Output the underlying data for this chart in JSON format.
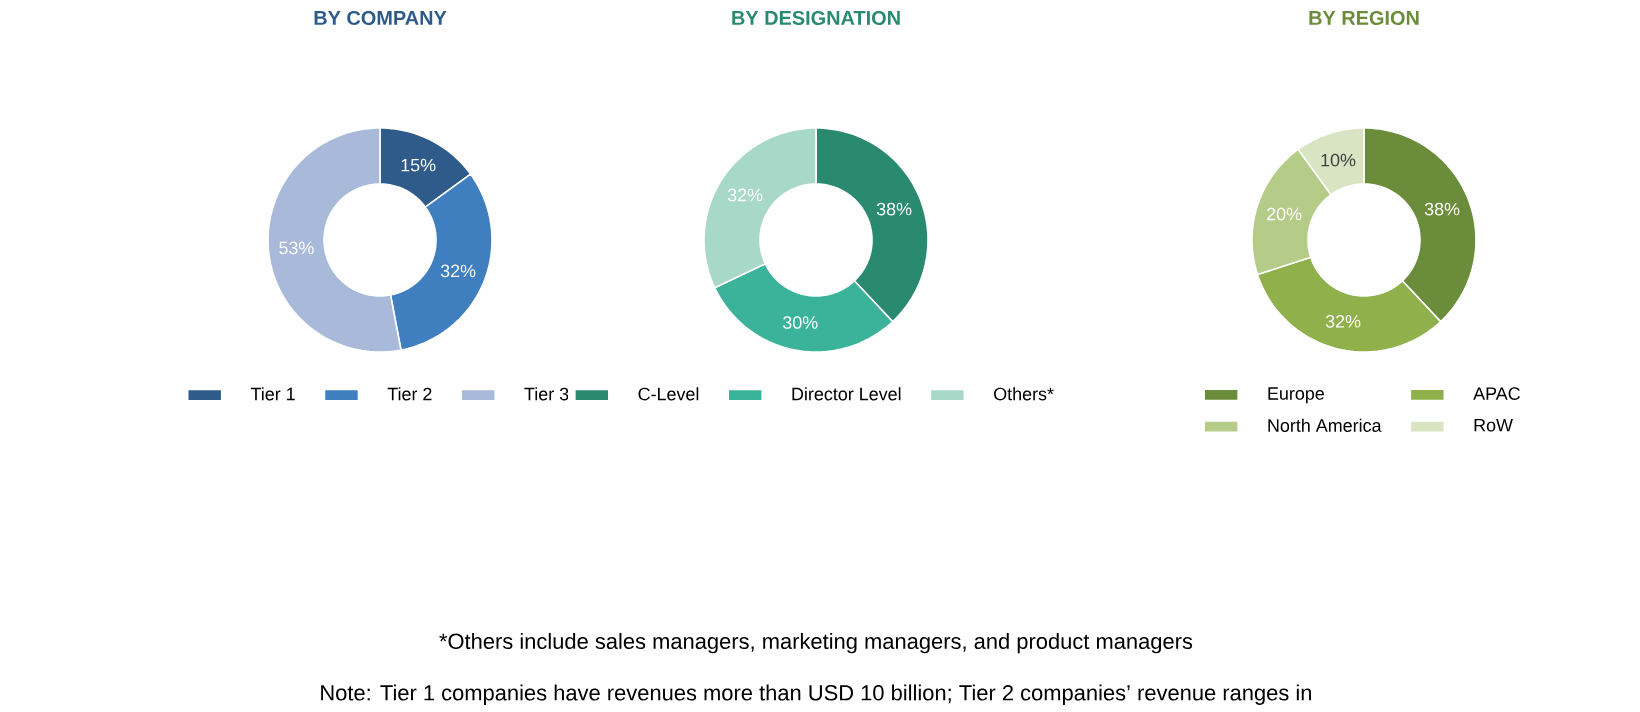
{
  "chart_data": [
    {
      "type": "donut",
      "title": "BY COMPANY",
      "categories": [
        "Tier 1",
        "Tier 2",
        "Tier 3"
      ],
      "values": [
        15,
        32,
        53
      ],
      "value_labels": [
        "15%",
        "32%",
        "53%"
      ],
      "colors": [
        "#2e5b8a",
        "#3f7fc0",
        "#a8b9d9"
      ],
      "legend": "bottom"
    },
    {
      "type": "donut",
      "title": "BY DESIGNATION",
      "categories": [
        "C-Level",
        "Director Level",
        "Others*"
      ],
      "values": [
        38,
        30,
        32
      ],
      "value_labels": [
        "38%",
        "30%",
        "32%"
      ],
      "colors": [
        "#2a8a70",
        "#3bb39a",
        "#a8d8c8"
      ],
      "legend": "bottom",
      "annotations": [
        "*Others include sales managers, marketing managers, and product managers",
        "Note: Tier 1 companies have revenues more than USD 10 billion; Tier 2 companies’ revenue ranges in"
      ]
    },
    {
      "type": "donut",
      "title": "BY REGION",
      "categories": [
        "Europe",
        "APAC",
        "North America",
        "RoW"
      ],
      "values": [
        38,
        32,
        20,
        10
      ],
      "value_labels": [
        "38%",
        "32%",
        "20%",
        "10%"
      ],
      "colors": [
        "#6b8c3a",
        "#8fb04a",
        "#b5cc88",
        "#d9e4c3"
      ],
      "legend": "bottom"
    }
  ]
}
